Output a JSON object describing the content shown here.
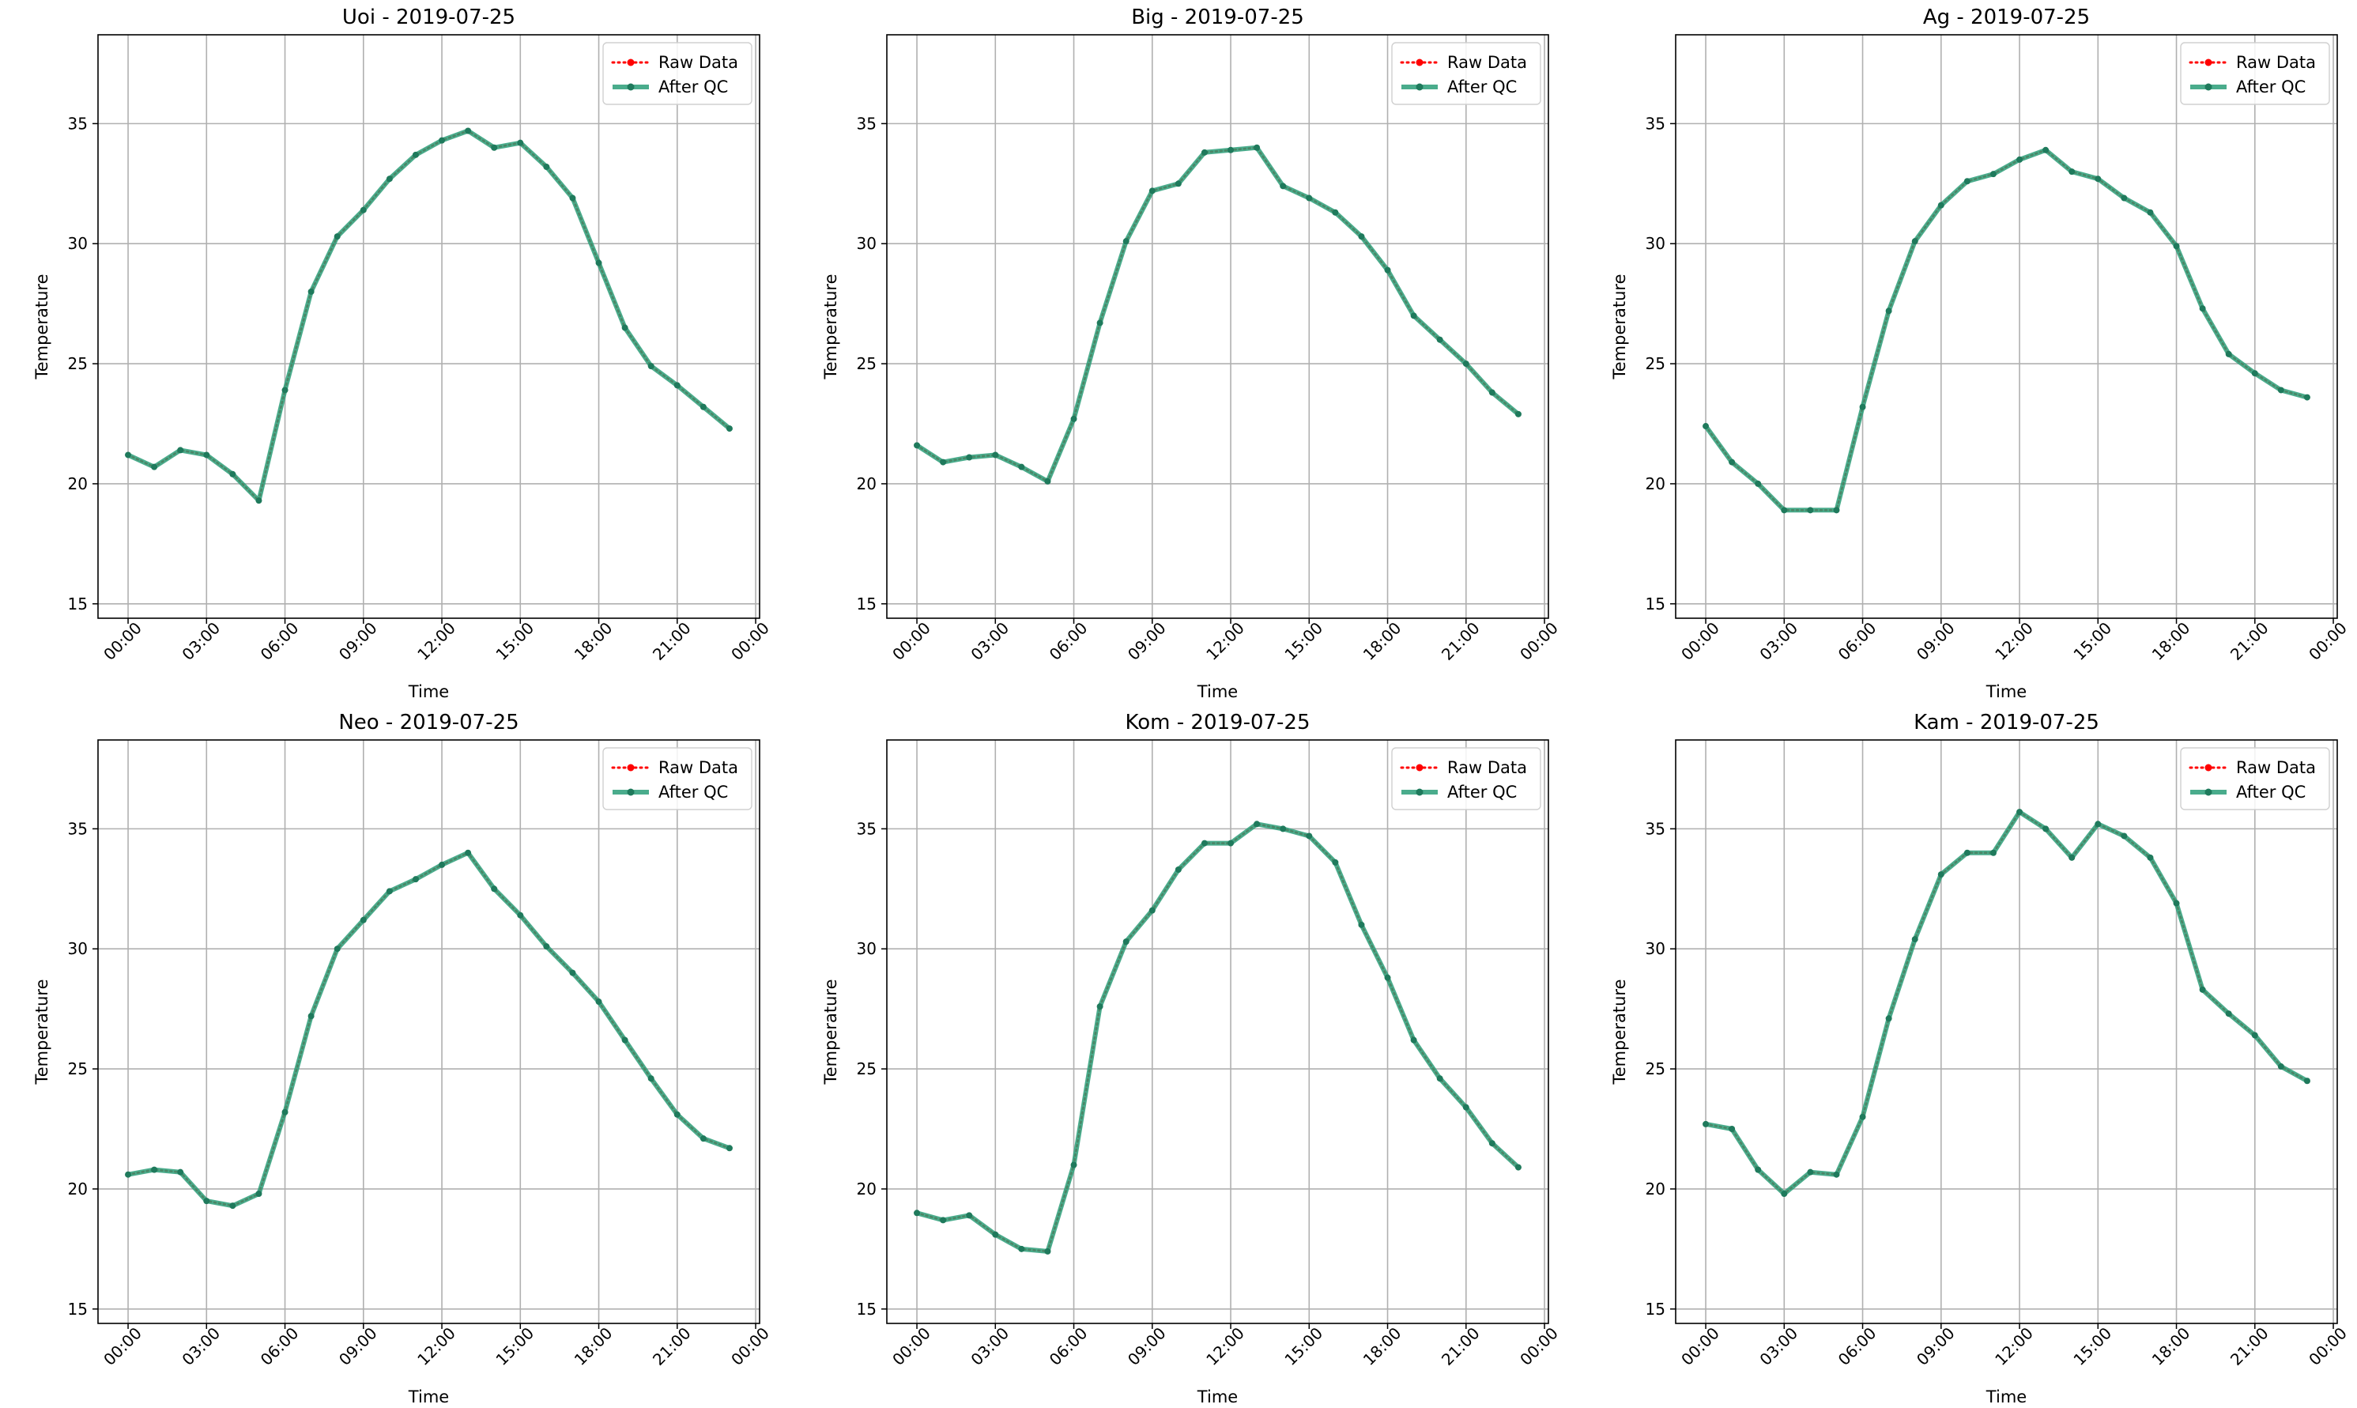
{
  "chart_data": [
    {
      "type": "line",
      "title": "Uoi - 2019-07-25",
      "xlabel": "Time",
      "ylabel": "Temperature",
      "xlim": [
        "2019-07-24 22:51",
        "2019-07-26 00:09"
      ],
      "ylim": [
        14.4,
        38.7
      ],
      "xticks": [
        "00:00",
        "03:00",
        "06:00",
        "09:00",
        "12:00",
        "15:00",
        "18:00",
        "21:00",
        "00:00"
      ],
      "yticks": [
        15,
        20,
        25,
        30,
        35
      ],
      "grid": true,
      "legend": {
        "position": "top-right",
        "entries": [
          "Raw Data",
          "After QC"
        ]
      },
      "x": [
        "00:00",
        "01:00",
        "02:00",
        "03:00",
        "04:00",
        "05:00",
        "06:00",
        "07:00",
        "08:00",
        "09:00",
        "10:00",
        "11:00",
        "12:00",
        "13:00",
        "14:00",
        "15:00",
        "16:00",
        "17:00",
        "18:00",
        "19:00",
        "20:00",
        "21:00",
        "22:00",
        "23:00"
      ],
      "series": [
        {
          "name": "Raw Data",
          "values": [
            21.2,
            20.7,
            21.4,
            21.2,
            20.4,
            19.3,
            23.9,
            28.0,
            30.3,
            31.4,
            32.7,
            33.7,
            34.3,
            34.7,
            34.0,
            34.2,
            33.2,
            31.9,
            29.2,
            26.5,
            24.9,
            24.1,
            23.2,
            22.3
          ]
        },
        {
          "name": "After QC",
          "values": [
            21.2,
            20.7,
            21.4,
            21.2,
            20.4,
            19.3,
            23.9,
            28.0,
            30.3,
            31.4,
            32.7,
            33.7,
            34.3,
            34.7,
            34.0,
            34.2,
            33.2,
            31.9,
            29.2,
            26.5,
            24.9,
            24.1,
            23.2,
            22.3
          ]
        }
      ]
    },
    {
      "type": "line",
      "title": "Big - 2019-07-25",
      "xlabel": "Time",
      "ylabel": "Temperature",
      "xlim": [
        "2019-07-24 22:51",
        "2019-07-26 00:09"
      ],
      "ylim": [
        14.4,
        38.7
      ],
      "xticks": [
        "00:00",
        "03:00",
        "06:00",
        "09:00",
        "12:00",
        "15:00",
        "18:00",
        "21:00",
        "00:00"
      ],
      "yticks": [
        15,
        20,
        25,
        30,
        35
      ],
      "grid": true,
      "legend": {
        "position": "top-right",
        "entries": [
          "Raw Data",
          "After QC"
        ]
      },
      "x": [
        "00:00",
        "01:00",
        "02:00",
        "03:00",
        "04:00",
        "05:00",
        "06:00",
        "07:00",
        "08:00",
        "09:00",
        "10:00",
        "11:00",
        "12:00",
        "13:00",
        "14:00",
        "15:00",
        "16:00",
        "17:00",
        "18:00",
        "19:00",
        "20:00",
        "21:00",
        "22:00",
        "23:00"
      ],
      "series": [
        {
          "name": "Raw Data",
          "values": [
            21.6,
            20.9,
            21.1,
            21.2,
            20.7,
            20.1,
            22.7,
            26.7,
            30.1,
            32.2,
            32.5,
            33.8,
            33.9,
            34.0,
            32.4,
            31.9,
            31.3,
            30.3,
            28.9,
            27.0,
            26.0,
            25.0,
            23.8,
            22.9
          ]
        },
        {
          "name": "After QC",
          "values": [
            21.6,
            20.9,
            21.1,
            21.2,
            20.7,
            20.1,
            22.7,
            26.7,
            30.1,
            32.2,
            32.5,
            33.8,
            33.9,
            34.0,
            32.4,
            31.9,
            31.3,
            30.3,
            28.9,
            27.0,
            26.0,
            25.0,
            23.8,
            22.9
          ]
        }
      ]
    },
    {
      "type": "line",
      "title": "Ag - 2019-07-25",
      "xlabel": "Time",
      "ylabel": "Temperature",
      "xlim": [
        "2019-07-24 22:51",
        "2019-07-26 00:09"
      ],
      "ylim": [
        14.4,
        38.7
      ],
      "xticks": [
        "00:00",
        "03:00",
        "06:00",
        "09:00",
        "12:00",
        "15:00",
        "18:00",
        "21:00",
        "00:00"
      ],
      "yticks": [
        15,
        20,
        25,
        30,
        35
      ],
      "grid": true,
      "legend": {
        "position": "top-right",
        "entries": [
          "Raw Data",
          "After QC"
        ]
      },
      "x": [
        "00:00",
        "01:00",
        "02:00",
        "03:00",
        "04:00",
        "05:00",
        "06:00",
        "07:00",
        "08:00",
        "09:00",
        "10:00",
        "11:00",
        "12:00",
        "13:00",
        "14:00",
        "15:00",
        "16:00",
        "17:00",
        "18:00",
        "19:00",
        "20:00",
        "21:00",
        "22:00",
        "23:00"
      ],
      "series": [
        {
          "name": "Raw Data",
          "values": [
            22.4,
            20.9,
            20.0,
            18.9,
            18.9,
            18.9,
            23.2,
            27.2,
            30.1,
            31.6,
            32.6,
            32.9,
            33.5,
            33.9,
            33.0,
            32.7,
            31.9,
            31.3,
            29.9,
            27.3,
            25.4,
            24.6,
            23.9,
            23.6
          ]
        },
        {
          "name": "After QC",
          "values": [
            22.4,
            20.9,
            20.0,
            18.9,
            18.9,
            18.9,
            23.2,
            27.2,
            30.1,
            31.6,
            32.6,
            32.9,
            33.5,
            33.9,
            33.0,
            32.7,
            31.9,
            31.3,
            29.9,
            27.3,
            25.4,
            24.6,
            23.9,
            23.6
          ]
        }
      ]
    },
    {
      "type": "line",
      "title": "Neo - 2019-07-25",
      "xlabel": "Time",
      "ylabel": "Temperature",
      "xlim": [
        "2019-07-24 22:51",
        "2019-07-26 00:09"
      ],
      "ylim": [
        14.4,
        38.7
      ],
      "xticks": [
        "00:00",
        "03:00",
        "06:00",
        "09:00",
        "12:00",
        "15:00",
        "18:00",
        "21:00",
        "00:00"
      ],
      "yticks": [
        15,
        20,
        25,
        30,
        35
      ],
      "grid": true,
      "legend": {
        "position": "top-right",
        "entries": [
          "Raw Data",
          "After QC"
        ]
      },
      "x": [
        "00:00",
        "01:00",
        "02:00",
        "03:00",
        "04:00",
        "05:00",
        "06:00",
        "07:00",
        "08:00",
        "09:00",
        "10:00",
        "11:00",
        "12:00",
        "13:00",
        "14:00",
        "15:00",
        "16:00",
        "17:00",
        "18:00",
        "19:00",
        "20:00",
        "21:00",
        "22:00",
        "23:00"
      ],
      "series": [
        {
          "name": "Raw Data",
          "values": [
            20.6,
            20.8,
            20.7,
            19.5,
            19.3,
            19.8,
            23.2,
            27.2,
            30.0,
            31.2,
            32.4,
            32.9,
            33.5,
            34.0,
            32.5,
            31.4,
            30.1,
            29.0,
            27.8,
            26.2,
            24.6,
            23.1,
            22.1,
            21.7
          ]
        },
        {
          "name": "After QC",
          "values": [
            20.6,
            20.8,
            20.7,
            19.5,
            19.3,
            19.8,
            23.2,
            27.2,
            30.0,
            31.2,
            32.4,
            32.9,
            33.5,
            34.0,
            32.5,
            31.4,
            30.1,
            29.0,
            27.8,
            26.2,
            24.6,
            23.1,
            22.1,
            21.7
          ]
        }
      ]
    },
    {
      "type": "line",
      "title": "Kom - 2019-07-25",
      "xlabel": "Time",
      "ylabel": "Temperature",
      "xlim": [
        "2019-07-24 22:51",
        "2019-07-26 00:09"
      ],
      "ylim": [
        14.4,
        38.7
      ],
      "xticks": [
        "00:00",
        "03:00",
        "06:00",
        "09:00",
        "12:00",
        "15:00",
        "18:00",
        "21:00",
        "00:00"
      ],
      "yticks": [
        15,
        20,
        25,
        30,
        35
      ],
      "grid": true,
      "legend": {
        "position": "top-right",
        "entries": [
          "Raw Data",
          "After QC"
        ]
      },
      "x": [
        "00:00",
        "01:00",
        "02:00",
        "03:00",
        "04:00",
        "05:00",
        "06:00",
        "07:00",
        "08:00",
        "09:00",
        "10:00",
        "11:00",
        "12:00",
        "13:00",
        "14:00",
        "15:00",
        "16:00",
        "17:00",
        "18:00",
        "19:00",
        "20:00",
        "21:00",
        "22:00",
        "23:00"
      ],
      "series": [
        {
          "name": "Raw Data",
          "values": [
            19.0,
            18.7,
            18.9,
            18.1,
            17.5,
            17.4,
            21.0,
            27.6,
            30.3,
            31.6,
            33.3,
            34.4,
            34.4,
            35.2,
            35.0,
            34.7,
            33.6,
            31.0,
            28.8,
            26.2,
            24.6,
            23.4,
            21.9,
            20.9
          ]
        },
        {
          "name": "After QC",
          "values": [
            19.0,
            18.7,
            18.9,
            18.1,
            17.5,
            17.4,
            21.0,
            27.6,
            30.3,
            31.6,
            33.3,
            34.4,
            34.4,
            35.2,
            35.0,
            34.7,
            33.6,
            31.0,
            28.8,
            26.2,
            24.6,
            23.4,
            21.9,
            20.9
          ]
        }
      ]
    },
    {
      "type": "line",
      "title": "Kam - 2019-07-25",
      "xlabel": "Time",
      "ylabel": "Temperature",
      "xlim": [
        "2019-07-24 22:51",
        "2019-07-26 00:09"
      ],
      "ylim": [
        14.4,
        38.7
      ],
      "xticks": [
        "00:00",
        "03:00",
        "06:00",
        "09:00",
        "12:00",
        "15:00",
        "18:00",
        "21:00",
        "00:00"
      ],
      "yticks": [
        15,
        20,
        25,
        30,
        35
      ],
      "grid": true,
      "legend": {
        "position": "top-right",
        "entries": [
          "Raw Data",
          "After QC"
        ]
      },
      "x": [
        "00:00",
        "01:00",
        "02:00",
        "03:00",
        "04:00",
        "05:00",
        "06:00",
        "07:00",
        "08:00",
        "09:00",
        "10:00",
        "11:00",
        "12:00",
        "13:00",
        "14:00",
        "15:00",
        "16:00",
        "17:00",
        "18:00",
        "19:00",
        "20:00",
        "21:00",
        "22:00",
        "23:00"
      ],
      "series": [
        {
          "name": "Raw Data",
          "values": [
            22.7,
            22.5,
            20.8,
            19.8,
            20.7,
            20.6,
            23.0,
            27.1,
            30.4,
            33.1,
            34.0,
            34.0,
            35.7,
            35.0,
            33.8,
            35.2,
            34.7,
            33.8,
            31.9,
            28.3,
            27.3,
            26.4,
            25.1,
            24.5
          ]
        },
        {
          "name": "After QC",
          "values": [
            22.7,
            22.5,
            20.8,
            19.8,
            20.7,
            20.6,
            23.0,
            27.1,
            30.4,
            33.1,
            34.0,
            34.0,
            35.7,
            35.0,
            33.8,
            35.2,
            34.7,
            33.8,
            31.9,
            28.3,
            27.3,
            26.4,
            25.1,
            24.5
          ]
        }
      ]
    }
  ],
  "colors": {
    "raw": "#ff0000",
    "qc": "#2a9d78",
    "qc_marker": "#1f7a5c",
    "grid": "#b0b0b0"
  }
}
